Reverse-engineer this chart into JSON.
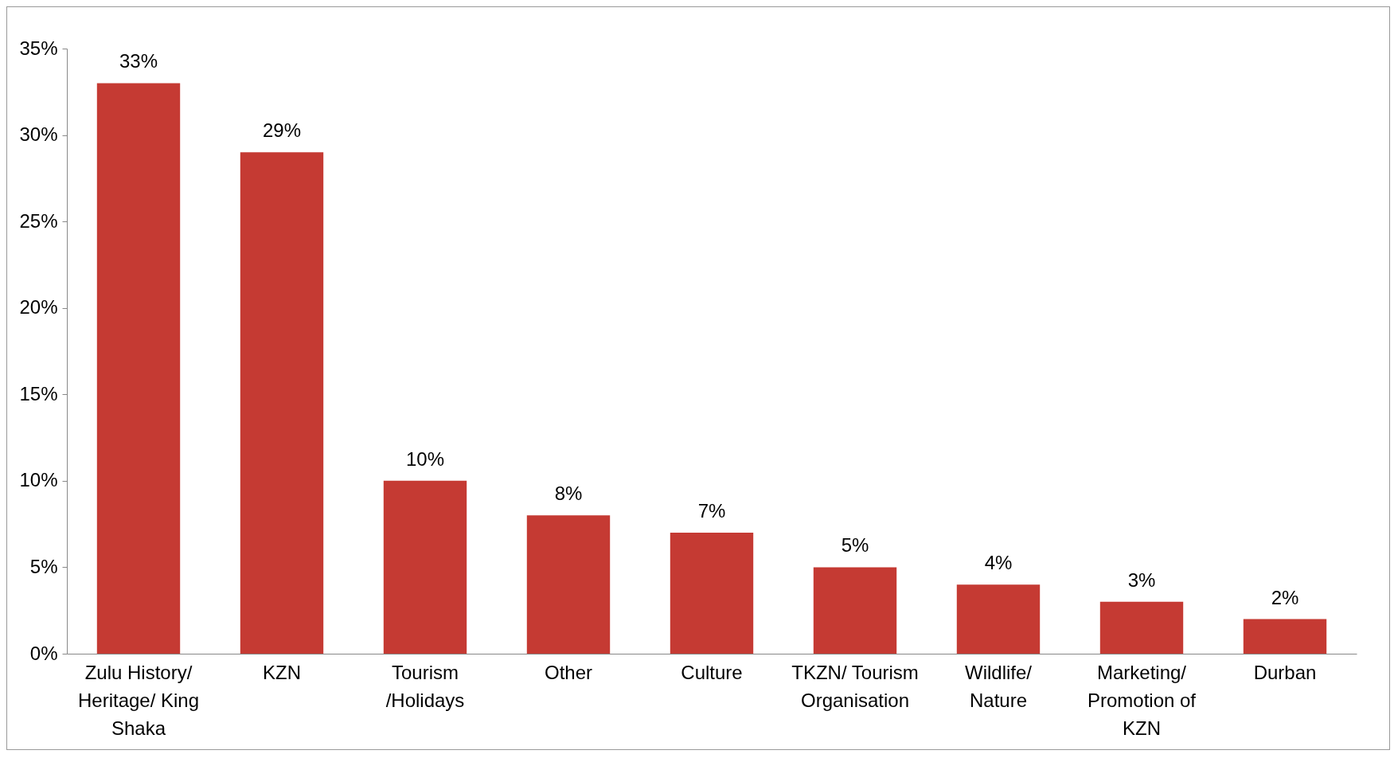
{
  "chart_data": {
    "type": "bar",
    "categories": [
      "Zulu History/ Heritage/ King Shaka",
      "KZN",
      "Tourism /Holidays",
      "Other",
      "Culture",
      "TKZN/ Tourism Organisation",
      "Wildlife/ Nature",
      "Marketing/ Promotion of KZN",
      "Durban"
    ],
    "values": [
      33,
      29,
      10,
      8,
      7,
      5,
      4,
      3,
      2
    ],
    "value_labels": [
      "33%",
      "29%",
      "10%",
      "8%",
      "7%",
      "5%",
      "4%",
      "3%",
      "2%"
    ],
    "color": "#c53a33",
    "ylim": [
      0,
      35
    ],
    "yticks": [
      {
        "value": 0,
        "label": "0%"
      },
      {
        "value": 5,
        "label": "5%"
      },
      {
        "value": 10,
        "label": "10%"
      },
      {
        "value": 15,
        "label": "15%"
      },
      {
        "value": 20,
        "label": "20%"
      },
      {
        "value": 25,
        "label": "25%"
      },
      {
        "value": 30,
        "label": "30%"
      },
      {
        "value": 35,
        "label": "35%"
      }
    ],
    "grid": false
  }
}
